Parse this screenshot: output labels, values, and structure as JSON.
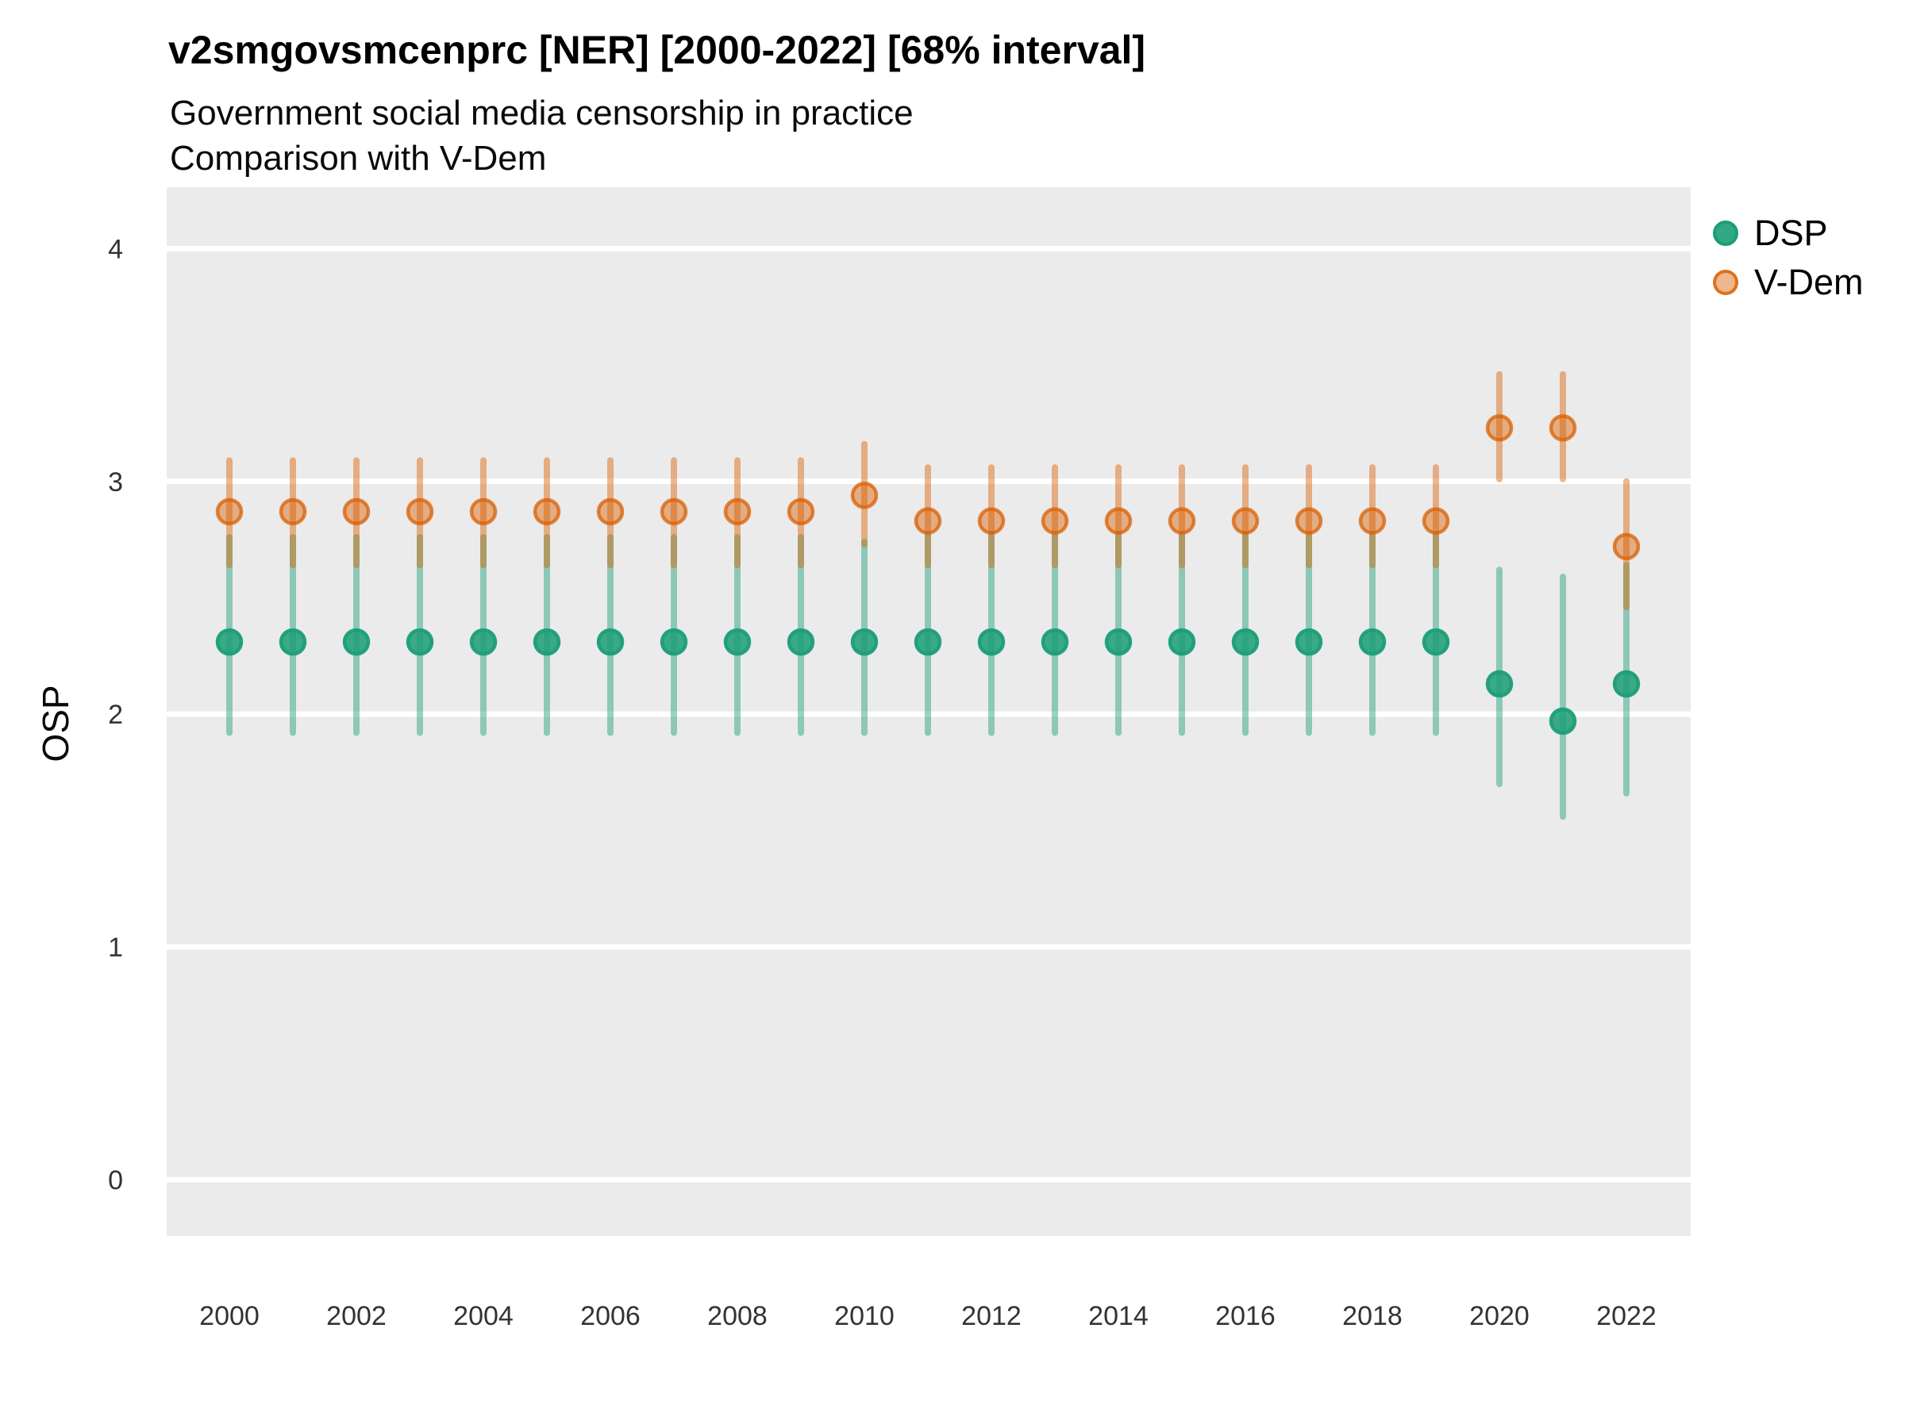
{
  "header": {
    "title": "v2smgovsmcenprc [NER] [2000-2022] [68% interval]",
    "subtitle_line1": "Government social media censorship in practice",
    "subtitle_line2": "Comparison with V-Dem"
  },
  "axes": {
    "y_label": "OSP",
    "y_tick_labels": [
      4,
      3,
      2,
      1,
      0
    ],
    "x_tick_labels": [
      2000,
      2002,
      2004,
      2006,
      2008,
      2010,
      2012,
      2014,
      2016,
      2018,
      2020,
      2022
    ]
  },
  "legend": {
    "items": [
      {
        "label": "DSP",
        "color": "#1b9e77"
      },
      {
        "label": "V-Dem",
        "color": "#d95f02"
      }
    ]
  },
  "colors": {
    "dsp": "#1b9e77",
    "vdem": "#d95f02",
    "panel": "#ebebeb",
    "grid": "#ffffff",
    "tick_text": "#333333"
  },
  "chart_data": {
    "type": "scatter",
    "subtype": "pointrange",
    "title": "v2smgovsmcenprc [NER] [2000-2022] [68% interval]",
    "subtitle": "Government social media censorship in practice — Comparison with V-Dem",
    "interval": "68%",
    "xlabel": "",
    "ylabel": "OSP",
    "ylim": [
      0,
      4
    ],
    "xlim": [
      2000,
      2022
    ],
    "grid": "on",
    "legend_position": "right",
    "series": [
      {
        "name": "DSP",
        "color": "#1b9e77",
        "points": [
          {
            "year": 2000,
            "value": 2.31,
            "lo": 1.92,
            "hi": 2.76
          },
          {
            "year": 2001,
            "value": 2.31,
            "lo": 1.92,
            "hi": 2.76
          },
          {
            "year": 2002,
            "value": 2.31,
            "lo": 1.92,
            "hi": 2.76
          },
          {
            "year": 2003,
            "value": 2.31,
            "lo": 1.92,
            "hi": 2.76
          },
          {
            "year": 2004,
            "value": 2.31,
            "lo": 1.92,
            "hi": 2.76
          },
          {
            "year": 2005,
            "value": 2.31,
            "lo": 1.92,
            "hi": 2.76
          },
          {
            "year": 2006,
            "value": 2.31,
            "lo": 1.92,
            "hi": 2.76
          },
          {
            "year": 2007,
            "value": 2.31,
            "lo": 1.92,
            "hi": 2.76
          },
          {
            "year": 2008,
            "value": 2.31,
            "lo": 1.92,
            "hi": 2.76
          },
          {
            "year": 2009,
            "value": 2.31,
            "lo": 1.92,
            "hi": 2.76
          },
          {
            "year": 2010,
            "value": 2.31,
            "lo": 1.92,
            "hi": 2.74
          },
          {
            "year": 2011,
            "value": 2.31,
            "lo": 1.92,
            "hi": 2.77
          },
          {
            "year": 2012,
            "value": 2.31,
            "lo": 1.92,
            "hi": 2.77
          },
          {
            "year": 2013,
            "value": 2.31,
            "lo": 1.92,
            "hi": 2.77
          },
          {
            "year": 2014,
            "value": 2.31,
            "lo": 1.92,
            "hi": 2.77
          },
          {
            "year": 2015,
            "value": 2.31,
            "lo": 1.92,
            "hi": 2.77
          },
          {
            "year": 2016,
            "value": 2.31,
            "lo": 1.92,
            "hi": 2.77
          },
          {
            "year": 2017,
            "value": 2.31,
            "lo": 1.92,
            "hi": 2.77
          },
          {
            "year": 2018,
            "value": 2.31,
            "lo": 1.92,
            "hi": 2.77
          },
          {
            "year": 2019,
            "value": 2.31,
            "lo": 1.92,
            "hi": 2.77
          },
          {
            "year": 2020,
            "value": 2.13,
            "lo": 1.7,
            "hi": 2.62
          },
          {
            "year": 2021,
            "value": 1.97,
            "lo": 1.56,
            "hi": 2.59
          },
          {
            "year": 2022,
            "value": 2.13,
            "lo": 1.66,
            "hi": 2.64
          }
        ]
      },
      {
        "name": "V-Dem",
        "color": "#d95f02",
        "points": [
          {
            "year": 2000,
            "value": 2.87,
            "lo": 2.64,
            "hi": 3.09
          },
          {
            "year": 2001,
            "value": 2.87,
            "lo": 2.64,
            "hi": 3.09
          },
          {
            "year": 2002,
            "value": 2.87,
            "lo": 2.64,
            "hi": 3.09
          },
          {
            "year": 2003,
            "value": 2.87,
            "lo": 2.64,
            "hi": 3.09
          },
          {
            "year": 2004,
            "value": 2.87,
            "lo": 2.64,
            "hi": 3.09
          },
          {
            "year": 2005,
            "value": 2.87,
            "lo": 2.64,
            "hi": 3.09
          },
          {
            "year": 2006,
            "value": 2.87,
            "lo": 2.64,
            "hi": 3.09
          },
          {
            "year": 2007,
            "value": 2.87,
            "lo": 2.64,
            "hi": 3.09
          },
          {
            "year": 2008,
            "value": 2.87,
            "lo": 2.64,
            "hi": 3.09
          },
          {
            "year": 2009,
            "value": 2.87,
            "lo": 2.64,
            "hi": 3.09
          },
          {
            "year": 2010,
            "value": 2.94,
            "lo": 2.73,
            "hi": 3.16
          },
          {
            "year": 2011,
            "value": 2.83,
            "lo": 2.64,
            "hi": 3.06
          },
          {
            "year": 2012,
            "value": 2.83,
            "lo": 2.64,
            "hi": 3.06
          },
          {
            "year": 2013,
            "value": 2.83,
            "lo": 2.64,
            "hi": 3.06
          },
          {
            "year": 2014,
            "value": 2.83,
            "lo": 2.64,
            "hi": 3.06
          },
          {
            "year": 2015,
            "value": 2.83,
            "lo": 2.64,
            "hi": 3.06
          },
          {
            "year": 2016,
            "value": 2.83,
            "lo": 2.64,
            "hi": 3.06
          },
          {
            "year": 2017,
            "value": 2.83,
            "lo": 2.64,
            "hi": 3.06
          },
          {
            "year": 2018,
            "value": 2.83,
            "lo": 2.64,
            "hi": 3.06
          },
          {
            "year": 2019,
            "value": 2.83,
            "lo": 2.64,
            "hi": 3.06
          },
          {
            "year": 2020,
            "value": 3.23,
            "lo": 3.01,
            "hi": 3.46
          },
          {
            "year": 2021,
            "value": 3.23,
            "lo": 3.01,
            "hi": 3.46
          },
          {
            "year": 2022,
            "value": 2.72,
            "lo": 2.46,
            "hi": 3.0
          }
        ]
      }
    ]
  }
}
